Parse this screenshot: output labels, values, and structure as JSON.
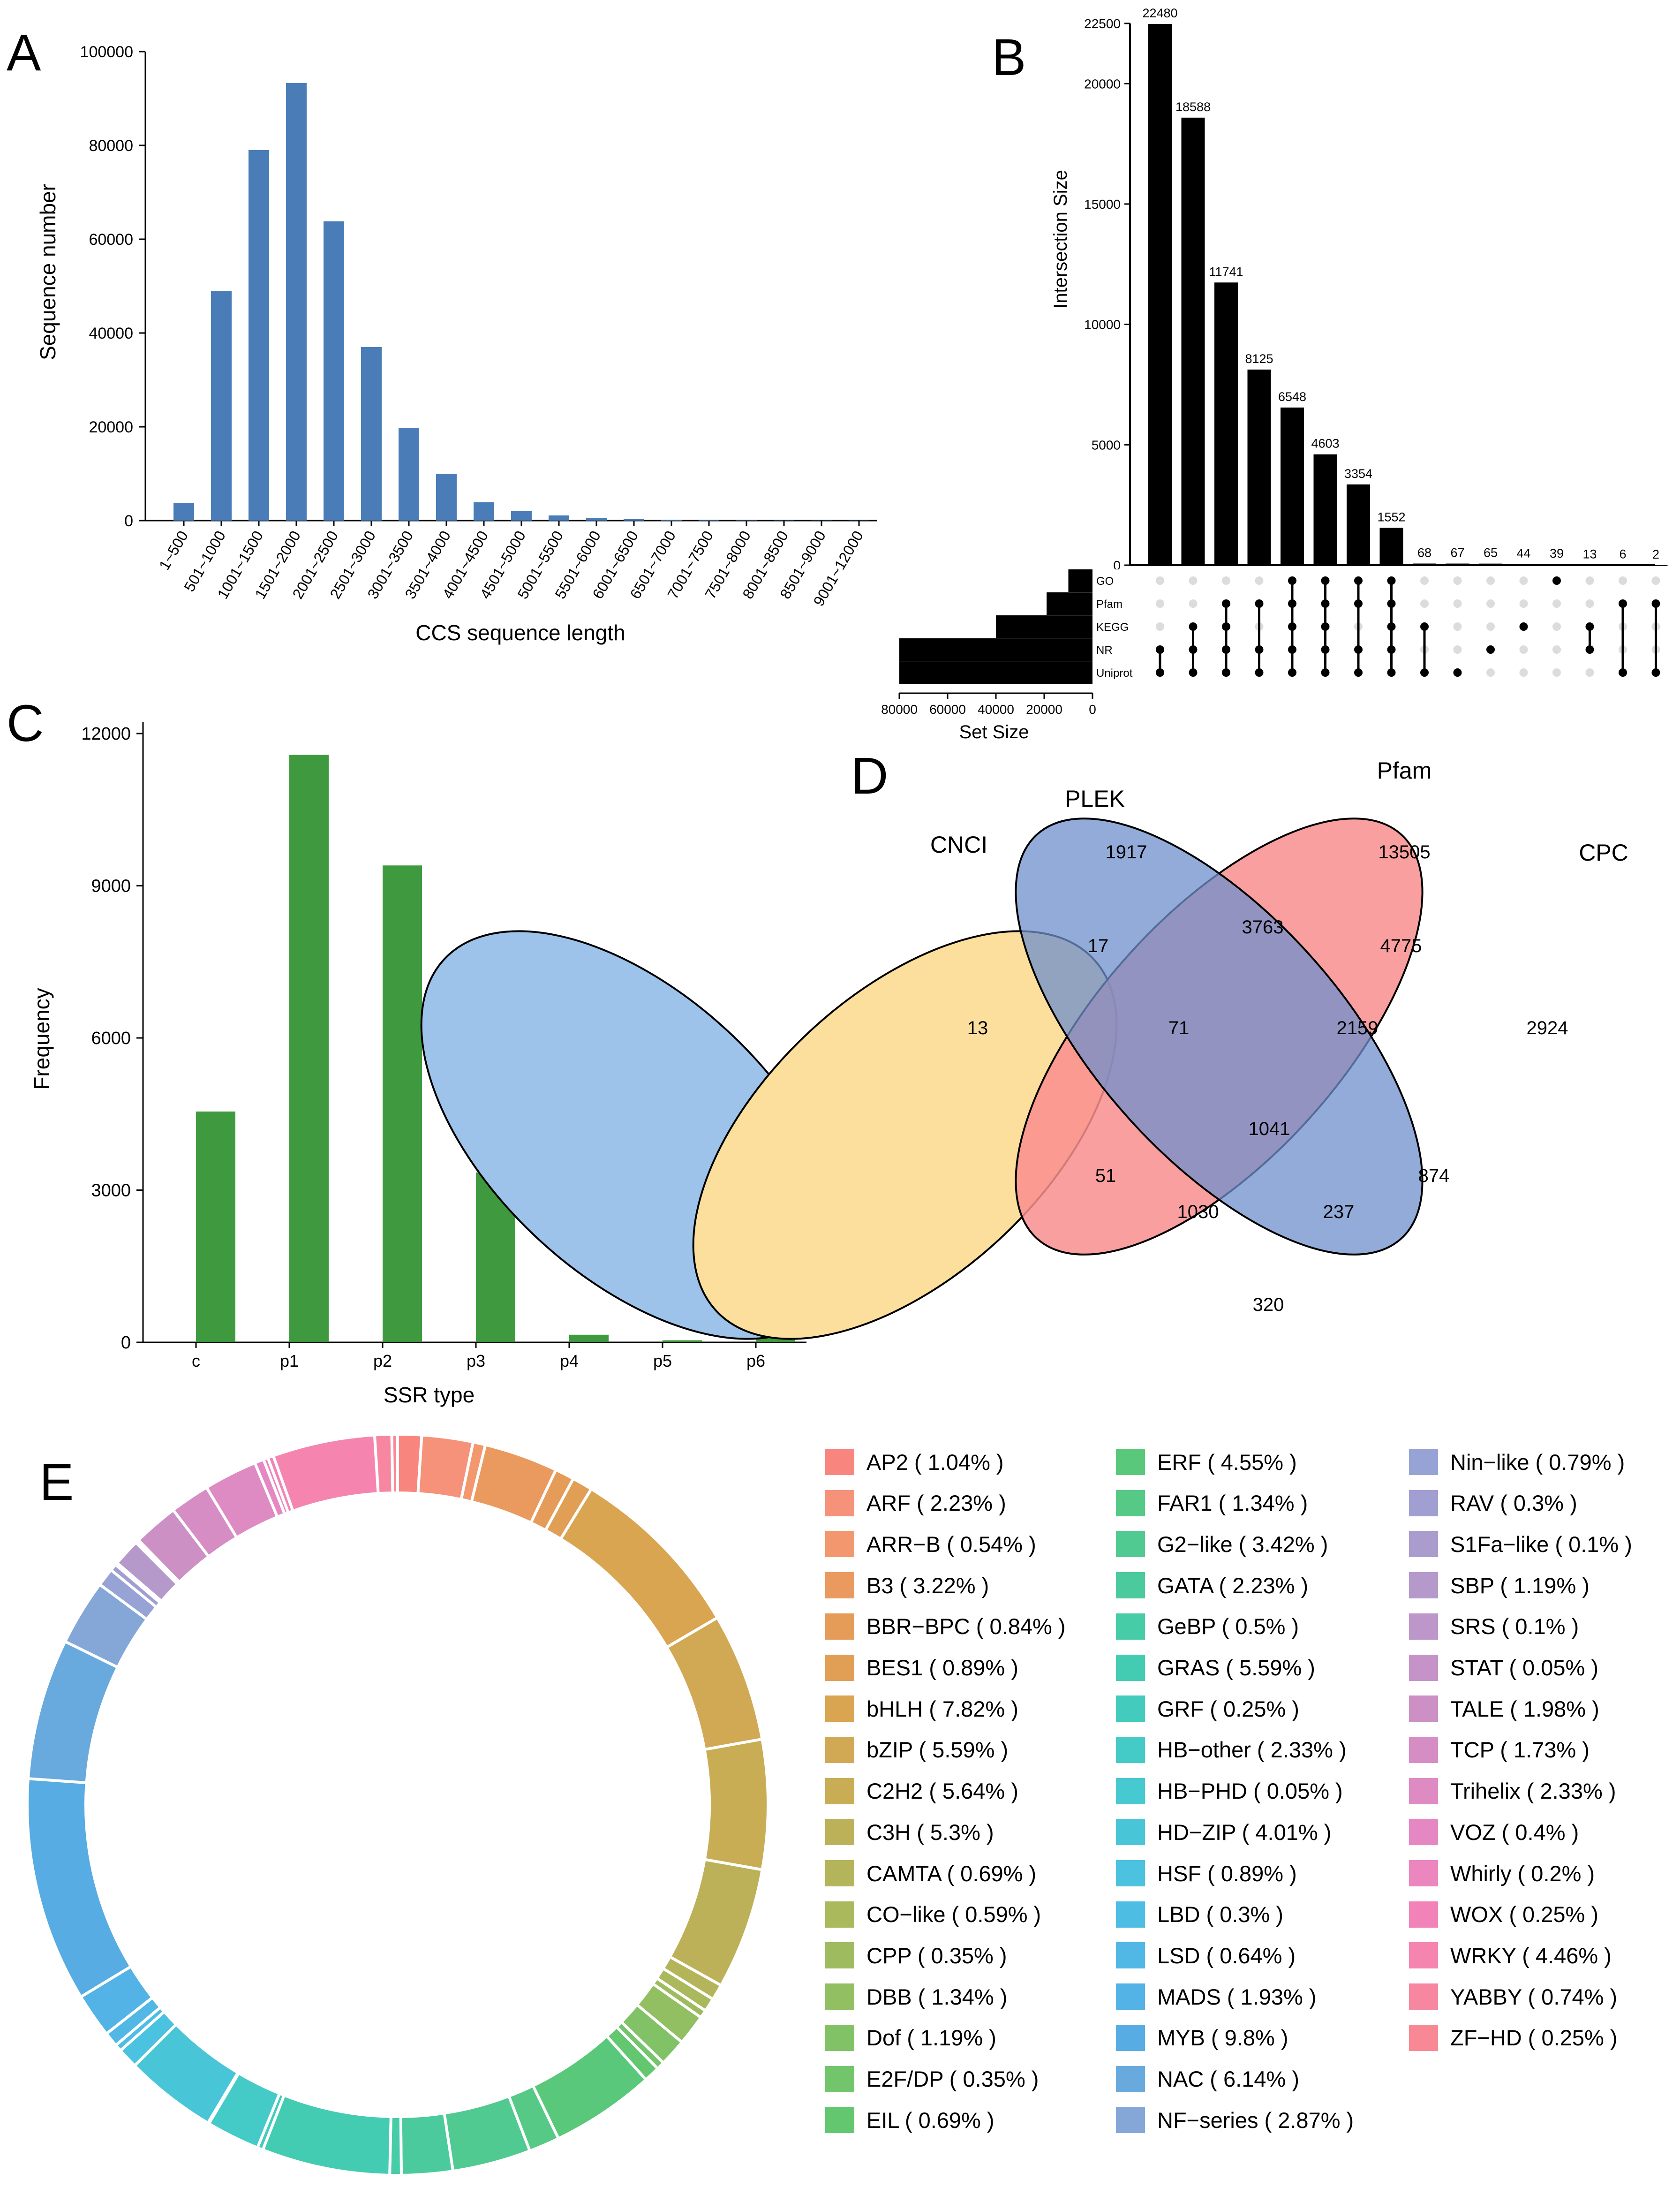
{
  "panels": {
    "A": {
      "letter": "A",
      "chart_data": {
        "type": "bar",
        "title": "",
        "xlabel": "CCS sequence length",
        "ylabel": "Sequence number",
        "ylim": [
          0,
          100000
        ],
        "yticks": [
          0,
          20000,
          40000,
          60000,
          80000,
          100000
        ],
        "ytick_labels": [
          "0",
          "20000",
          "40000",
          "60000",
          "80000",
          "100000"
        ],
        "categories": [
          "1~500",
          "501~1000",
          "1001~1500",
          "1501~2000",
          "2001~2500",
          "2501~3000",
          "3001~3500",
          "3501~4000",
          "4001~4500",
          "4501~5000",
          "5001~5500",
          "5501~6000",
          "6001~6500",
          "6501~7000",
          "7001~7500",
          "7501~8000",
          "8001~8500",
          "8501~9000",
          "9001~12000"
        ],
        "values": [
          3800,
          49000,
          79000,
          93300,
          63800,
          37000,
          19800,
          10000,
          3900,
          2000,
          1100,
          500,
          300,
          100,
          80,
          50,
          30,
          20,
          20
        ],
        "color": "#4a7db8"
      }
    },
    "B": {
      "letter": "B",
      "chart_data": {
        "type": "upset",
        "ylabel": "Intersection Size",
        "xlabel": "Set Size",
        "ylim": [
          0,
          22500
        ],
        "yticks": [
          0,
          5000,
          10000,
          15000,
          20000,
          22500
        ],
        "ytick_labels": [
          "0",
          "5000",
          "10000",
          "15000",
          "20000",
          "22500"
        ],
        "sets": [
          "GO",
          "Pfam",
          "KEGG",
          "NR",
          "Uniprot"
        ],
        "set_sizes": [
          10000,
          19000,
          40000,
          80000,
          80000
        ],
        "set_xticks": [
          80000,
          60000,
          40000,
          20000,
          0
        ],
        "set_xtick_labels": [
          "80000",
          "60000",
          "40000",
          "20000",
          "0"
        ],
        "intersections": [
          {
            "value": 22480,
            "label": "22480",
            "members": [
              "NR",
              "Uniprot"
            ]
          },
          {
            "value": 18588,
            "label": "18588",
            "members": [
              "KEGG",
              "NR",
              "Uniprot"
            ]
          },
          {
            "value": 11741,
            "label": "11741",
            "members": [
              "Pfam",
              "KEGG",
              "NR",
              "Uniprot"
            ]
          },
          {
            "value": 8125,
            "label": "8125",
            "members": [
              "Pfam",
              "NR",
              "Uniprot"
            ]
          },
          {
            "value": 6548,
            "label": "6548",
            "members": [
              "GO",
              "Pfam",
              "KEGG",
              "NR",
              "Uniprot"
            ]
          },
          {
            "value": 4603,
            "label": "4603",
            "members": [
              "GO",
              "Pfam",
              "KEGG",
              "NR",
              "Uniprot"
            ]
          },
          {
            "value": 3354,
            "label": "3354",
            "members": [
              "GO",
              "Pfam",
              "NR",
              "Uniprot"
            ]
          },
          {
            "value": 1552,
            "label": "1552",
            "members": [
              "GO",
              "Pfam",
              "KEGG",
              "NR",
              "Uniprot"
            ]
          },
          {
            "value": 68,
            "label": "68",
            "members": [
              "KEGG",
              "Uniprot"
            ]
          },
          {
            "value": 67,
            "label": "67",
            "members": [
              "Uniprot"
            ]
          },
          {
            "value": 65,
            "label": "65",
            "members": [
              "NR"
            ]
          },
          {
            "value": 44,
            "label": "44",
            "members": [
              "KEGG"
            ]
          },
          {
            "value": 39,
            "label": "39",
            "members": [
              "GO"
            ]
          },
          {
            "value": 13,
            "label": "13",
            "members": [
              "KEGG",
              "NR"
            ]
          },
          {
            "value": 6,
            "label": "6",
            "members": [
              "Pfam",
              "Uniprot"
            ]
          },
          {
            "value": 2,
            "label": "2",
            "members": [
              "Pfam",
              "Uniprot"
            ]
          }
        ]
      }
    },
    "C": {
      "letter": "C",
      "chart_data": {
        "type": "bar",
        "xlabel": "SSR type",
        "ylabel": "Frequency",
        "ylim": [
          0,
          12000
        ],
        "yticks": [
          0,
          3000,
          6000,
          9000,
          12000
        ],
        "ytick_labels": [
          "0",
          "3000",
          "6000",
          "9000",
          "12000"
        ],
        "categories": [
          "c",
          "p1",
          "p2",
          "p3",
          "p4",
          "p5",
          "p6"
        ],
        "values": [
          4550,
          11580,
          9400,
          3350,
          150,
          40,
          110
        ],
        "color": "#3f9a3f"
      }
    },
    "D": {
      "letter": "D",
      "chart_data": {
        "type": "venn",
        "sets": [
          {
            "name": "CNCI",
            "color": "#9ec3ea"
          },
          {
            "name": "PLEK",
            "color": "#8da4d2"
          },
          {
            "name": "Pfam",
            "color": "#f98e8e"
          },
          {
            "name": "CPC",
            "color": "#fcdf9d"
          }
        ],
        "regions": [
          {
            "sets": [
              "PLEK"
            ],
            "value": "1917"
          },
          {
            "sets": [
              "Pfam"
            ],
            "value": "13505"
          },
          {
            "sets": [
              "PLEK",
              "Pfam"
            ],
            "value": "3763"
          },
          {
            "sets": [
              "CNCI",
              "PLEK"
            ],
            "value": "17"
          },
          {
            "sets": [
              "Pfam",
              "CPC"
            ],
            "value": "4775"
          },
          {
            "sets": [
              "CNCI"
            ],
            "value": "13"
          },
          {
            "sets": [
              "CNCI",
              "PLEK",
              "Pfam"
            ],
            "value": "71"
          },
          {
            "sets": [
              "PLEK",
              "Pfam",
              "CPC"
            ],
            "value": "2159"
          },
          {
            "sets": [
              "CPC"
            ],
            "value": "2924"
          },
          {
            "sets": [
              "CNCI",
              "PLEK",
              "Pfam",
              "CPC"
            ],
            "value": "1041"
          },
          {
            "sets": [
              "CNCI",
              "Pfam"
            ],
            "value": "51"
          },
          {
            "sets": [
              "PLEK",
              "CPC"
            ],
            "value": "874"
          },
          {
            "sets": [
              "CNCI",
              "Pfam",
              "CPC"
            ],
            "value": "1030"
          },
          {
            "sets": [
              "CNCI",
              "PLEK",
              "CPC"
            ],
            "value": "237"
          },
          {
            "sets": [
              "CNCI",
              "CPC"
            ],
            "value": "320"
          }
        ]
      }
    },
    "E": {
      "letter": "E",
      "chart_data": {
        "type": "pie",
        "subtype": "donut",
        "legend_position": "right",
        "slices": [
          {
            "name": "AP2",
            "value": 1.04,
            "label": "AP2 ( 1.04% )",
            "color": "#f8867f"
          },
          {
            "name": "ARF",
            "value": 2.23,
            "label": "ARF ( 2.23% )",
            "color": "#f6917a"
          },
          {
            "name": "ARR-B",
            "value": 0.54,
            "label": "ARR−B ( 0.54% )",
            "color": "#f2976e"
          },
          {
            "name": "B3",
            "value": 3.22,
            "label": "B3 ( 3.22% )",
            "color": "#eb9a5f"
          },
          {
            "name": "BBR-BPC",
            "value": 0.84,
            "label": "BBR−BPC ( 0.84% )",
            "color": "#e69c59"
          },
          {
            "name": "BES1",
            "value": 0.89,
            "label": "BES1 ( 0.89% )",
            "color": "#e09f55"
          },
          {
            "name": "bHLH",
            "value": 7.82,
            "label": "bHLH ( 7.82% )",
            "color": "#d9a551"
          },
          {
            "name": "bZIP",
            "value": 5.59,
            "label": "bZIP ( 5.59% )",
            "color": "#d1a954"
          },
          {
            "name": "C2H2",
            "value": 5.64,
            "label": "C2H2 ( 5.64% )",
            "color": "#c8ad55"
          },
          {
            "name": "C3H",
            "value": 5.3,
            "label": "C3H ( 5.3% )",
            "color": "#bcb159"
          },
          {
            "name": "CAMTA",
            "value": 0.69,
            "label": "CAMTA ( 0.69% )",
            "color": "#b4b55a"
          },
          {
            "name": "CO-like",
            "value": 0.59,
            "label": "CO−like ( 0.59% )",
            "color": "#a9b95c"
          },
          {
            "name": "CPP",
            "value": 0.35,
            "label": "CPP ( 0.35% )",
            "color": "#9ebc5f"
          },
          {
            "name": "DBB",
            "value": 1.34,
            "label": "DBB ( 1.34% )",
            "color": "#91bf62"
          },
          {
            "name": "Dof",
            "value": 1.19,
            "label": "Dof ( 1.19% )",
            "color": "#82c266"
          },
          {
            "name": "E2F/DP",
            "value": 0.35,
            "label": "E2F/DP ( 0.35% )",
            "color": "#72c56a"
          },
          {
            "name": "EIL",
            "value": 0.69,
            "label": "EIL ( 0.69% )",
            "color": "#62c76f"
          },
          {
            "name": "ERF",
            "value": 4.55,
            "label": "ERF ( 4.55% )",
            "color": "#5ac87a"
          },
          {
            "name": "FAR1",
            "value": 1.34,
            "label": "FAR1 ( 1.34% )",
            "color": "#55c985"
          },
          {
            "name": "G2-like",
            "value": 3.42,
            "label": "G2−like ( 3.42% )",
            "color": "#50ca91"
          },
          {
            "name": "GATA",
            "value": 2.23,
            "label": "GATA ( 2.23% )",
            "color": "#4bcb9d"
          },
          {
            "name": "GeBP",
            "value": 0.5,
            "label": "GeBP ( 0.5% )",
            "color": "#47cca8"
          },
          {
            "name": "GRAS",
            "value": 5.59,
            "label": "GRAS ( 5.59% )",
            "color": "#44ccb2"
          },
          {
            "name": "GRF",
            "value": 0.25,
            "label": "GRF ( 0.25% )",
            "color": "#43cbbd"
          },
          {
            "name": "HB-other",
            "value": 2.33,
            "label": "HB−other ( 2.33% )",
            "color": "#44cbc7"
          },
          {
            "name": "HB-PHD",
            "value": 0.05,
            "label": "HB−PHD ( 0.05% )",
            "color": "#46c9d0"
          },
          {
            "name": "HD-ZIP",
            "value": 4.01,
            "label": "HD−ZIP ( 4.01% )",
            "color": "#48c6d8"
          },
          {
            "name": "HSF",
            "value": 0.89,
            "label": "HSF ( 0.89% )",
            "color": "#4bc2df"
          },
          {
            "name": "LBD",
            "value": 0.3,
            "label": "LBD ( 0.3% )",
            "color": "#4ebde4"
          },
          {
            "name": "LSD",
            "value": 0.64,
            "label": "LSD ( 0.64% )",
            "color": "#51b8e6"
          },
          {
            "name": "MADS",
            "value": 1.93,
            "label": "MADS ( 1.93% )",
            "color": "#53b2e6"
          },
          {
            "name": "MYB",
            "value": 9.8,
            "label": "MYB ( 9.8% )",
            "color": "#56ace3"
          },
          {
            "name": "NAC",
            "value": 6.14,
            "label": "NAC ( 6.14% )",
            "color": "#68a9de"
          },
          {
            "name": "NF-series",
            "value": 2.87,
            "label": "NF−series ( 2.87% )",
            "color": "#84a7d8"
          },
          {
            "name": "Nin-like",
            "value": 0.79,
            "label": "Nin−like ( 0.79% )",
            "color": "#96a3d4"
          },
          {
            "name": "RAV",
            "value": 0.3,
            "label": "RAV ( 0.3% )",
            "color": "#a19fd1"
          },
          {
            "name": "S1Fa-like",
            "value": 0.1,
            "label": "S1Fa−like ( 0.1% )",
            "color": "#aa9ccd"
          },
          {
            "name": "SBP",
            "value": 1.19,
            "label": "SBP ( 1.19% )",
            "color": "#b599ca"
          },
          {
            "name": "SRS",
            "value": 0.1,
            "label": "SRS ( 0.1% )",
            "color": "#bd97c9"
          },
          {
            "name": "STAT",
            "value": 0.05,
            "label": "STAT ( 0.05% )",
            "color": "#c593c7"
          },
          {
            "name": "TALE",
            "value": 1.98,
            "label": "TALE ( 1.98% )",
            "color": "#cc90c5"
          },
          {
            "name": "TCP",
            "value": 1.73,
            "label": "TCP ( 1.73% )",
            "color": "#d58dc4"
          },
          {
            "name": "Trihelix",
            "value": 2.33,
            "label": "Trihelix ( 2.33% )",
            "color": "#de8ac3"
          },
          {
            "name": "VOZ",
            "value": 0.4,
            "label": "VOZ ( 0.4% )",
            "color": "#e587c2"
          },
          {
            "name": "Whirly",
            "value": 0.2,
            "label": "Whirly ( 0.2% )",
            "color": "#ec86bf"
          },
          {
            "name": "WOX",
            "value": 0.25,
            "label": "WOX ( 0.25% )",
            "color": "#f283b8"
          },
          {
            "name": "WRKY",
            "value": 4.46,
            "label": "WRKY ( 4.46% )",
            "color": "#f585af"
          },
          {
            "name": "YABBY",
            "value": 0.74,
            "label": "YABBY ( 0.74% )",
            "color": "#f787a1"
          },
          {
            "name": "ZF-HD",
            "value": 0.25,
            "label": "ZF−HD ( 0.25% )",
            "color": "#f88893"
          }
        ]
      }
    }
  }
}
